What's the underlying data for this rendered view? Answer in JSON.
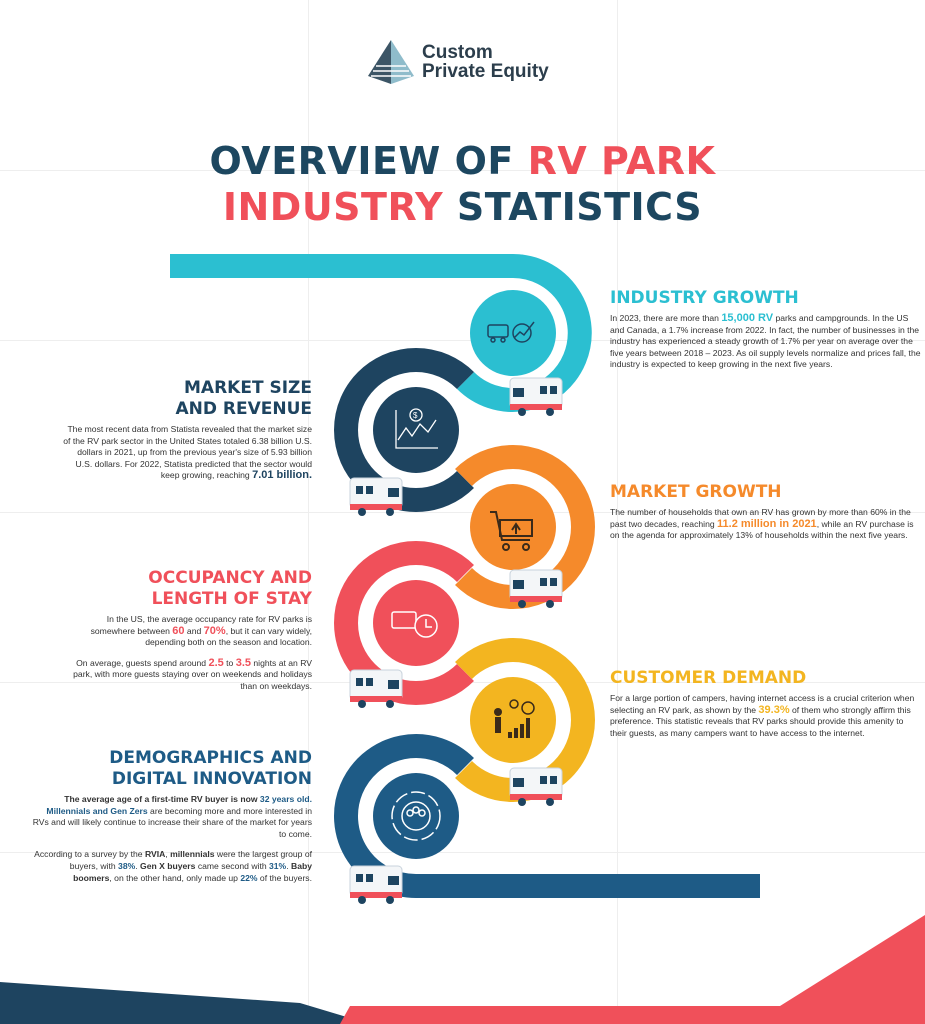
{
  "logo": {
    "line1": "Custom",
    "line2": "Private Equity"
  },
  "title": {
    "p1": "OVERVIEW OF ",
    "p2": "RV PARK",
    "p3": "INDUSTRY",
    "p4": " STATISTICS"
  },
  "colors": {
    "navy": "#1d4760",
    "teal": "#2bbfd1",
    "dark": "#1e4460",
    "orange": "#f58a2b",
    "red": "#f0505a",
    "yellow": "#f3b520",
    "blue": "#1e5b86"
  },
  "sections": {
    "industry_growth": {
      "title": "INDUSTRY GROWTH",
      "t1": "In 2023, there are more than ",
      "h1": "15,000 RV",
      "t2": " parks and campgrounds. In the US and Canada, a 1.7% increase from 2022. In fact, the number of businesses in the industry has experienced a steady growth of 1.7% per year on average over the five years between 2018 – 2023. As oil supply levels normalize and prices fall, the industry is expected to keep growing in the next five years.",
      "icon": "rv-gear-growth-icon"
    },
    "market_size": {
      "title1": "MARKET SIZE",
      "title2": "AND REVENUE",
      "t1": "The most recent data from Statista revealed that the market size of the RV park sector in the United States totaled 6.38 billion U.S. dollars in 2021, up from the previous year's size of 5.93 billion U.S. dollars. For 2022, Statista predicted that the sector would keep growing, reaching ",
      "h1": "7.01 billion.",
      "icon": "dollar-chart-icon"
    },
    "market_growth": {
      "title": "MARKET GROWTH",
      "t1": "The number of households that own an RV has grown by more than 60% in the past two decades, reaching ",
      "h1": "11.2 million in 2021",
      "t2": ", while an RV purchase is on the agenda for approximately 13% of households within the next five years.",
      "icon": "cart-upload-icon"
    },
    "occupancy": {
      "title1": "OCCUPANCY AND",
      "title2": "LENGTH OF STAY",
      "t1": "In the US, the average occupancy rate for RV parks is somewhere between ",
      "h1": "60",
      "t2": " and ",
      "h2": "70%",
      "t3": ", but it can vary widely, depending both on the season and location.",
      "t4": "On average, guests spend around ",
      "h3": "2.5",
      "t5": " to ",
      "h4": "3.5",
      "t6": " nights at an RV park, with more guests staying over on weekends and holidays than on weekdays.",
      "icon": "rv-clock-icon"
    },
    "customer_demand": {
      "title": "CUSTOMER DEMAND",
      "t1": "For a large portion of campers, having internet access is a crucial criterion when selecting an RV park, as shown by the ",
      "h1": "39.3%",
      "t2": " of them who strongly affirm this preference. This statistic reveals that RV parks should provide this amenity to their guests, as many campers want to have access to the internet.",
      "icon": "person-growth-icon"
    },
    "demographics": {
      "title1": "DEMOGRAPHICS AND",
      "title2": "DIGITAL INNOVATION",
      "b1": "The average age of a first-time RV buyer is now ",
      "h1": "32 years old.",
      "h2": "Millennials and Gen Zers",
      "t1": " are becoming more and more interested in RVs and will likely continue to increase their share of the market for years to come.",
      "t2": "According to a survey by the ",
      "b2": "RVIA",
      "t3": ", ",
      "b3": "millennials",
      "t4": " were the largest group of buyers, with ",
      "h3": "38%",
      "t5": ". ",
      "b4": "Gen X buyers",
      "t6": " came second with ",
      "h4": "31%",
      "t7": ". ",
      "b5": "Baby boomers",
      "t8": ", on the other hand, only made up ",
      "h5": "22%",
      "t9": " of the buyers.",
      "icon": "people-circle-icon"
    }
  }
}
